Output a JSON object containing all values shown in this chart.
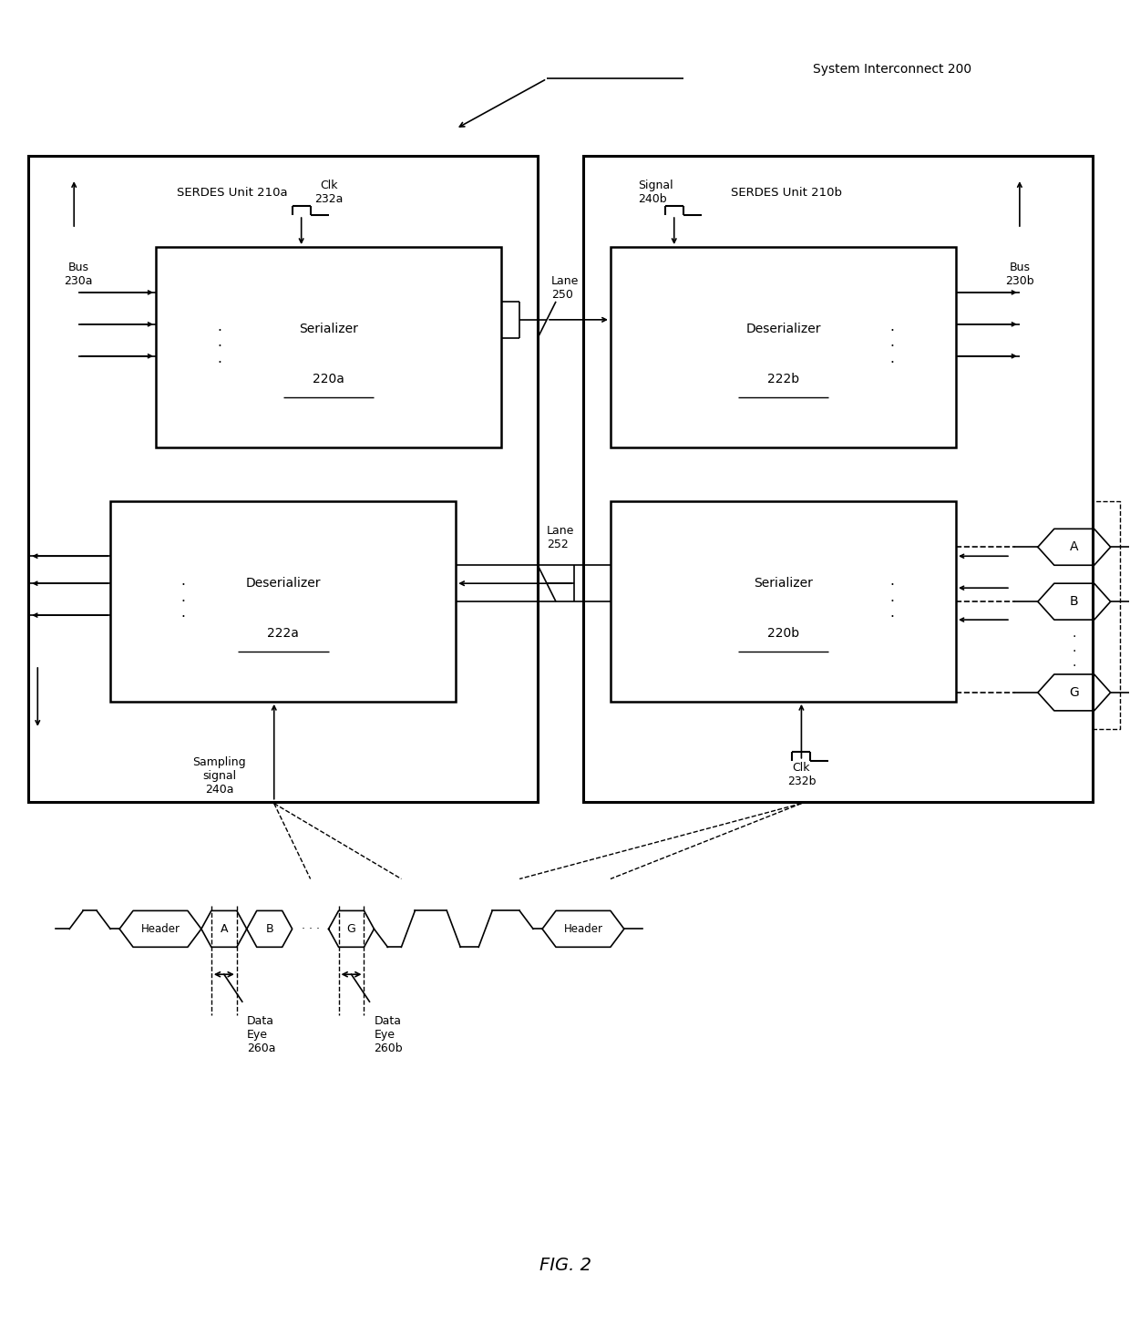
{
  "title": "FIG. 2",
  "bg_color": "#ffffff",
  "system_interconnect_label": "System Interconnect 200",
  "serdes_a_label": "SERDES Unit 210a",
  "serdes_b_label": "SERDES Unit 210b",
  "serializer_a_label": "Serializer",
  "serializer_a_num": "220a",
  "deserializer_a_label": "Deserializer",
  "deserializer_a_num": "222a",
  "serializer_b_label": "Serializer",
  "serializer_b_num": "220b",
  "deserializer_b_label": "Deserializer",
  "deserializer_b_num": "222b",
  "bus_a_label": "Bus\n230a",
  "bus_b_label": "Bus\n230b",
  "clk_a_label": "Clk\n232a",
  "clk_b_label": "Clk\n232b",
  "signal_b_label": "Signal\n240b",
  "sampling_signal_label": "Sampling\nsignal\n240a",
  "lane_250_label": "Lane\n250",
  "lane_252_label": "Lane\n252",
  "data_eye_a_label": "Data\nEye\n260a",
  "data_eye_b_label": "Data\nEye\n260b",
  "header_label": "Header",
  "slots": [
    "A",
    "B",
    "G"
  ]
}
